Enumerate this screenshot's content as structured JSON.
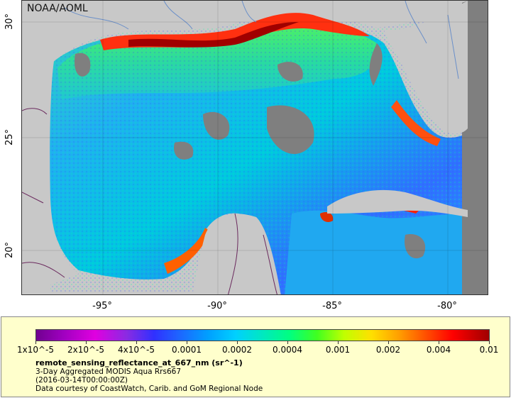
{
  "watermark": "NOAA/AOML",
  "axes": {
    "x_ticks": [
      "-95°",
      "-90°",
      "-85°",
      "-80°"
    ],
    "y_ticks": [
      "30°",
      "25°",
      "20°"
    ]
  },
  "legend": {
    "colorbar_labels": [
      "1x10^-5",
      "2x10^-5",
      "4x10^-5",
      "0.0001",
      "0.0002",
      "0.0004",
      "0.001",
      "0.002",
      "0.004",
      "0.01"
    ],
    "title": "remote_sensing_reflectance_at_667_nm (sr^-1)",
    "line1": "3-Day Aggregated MODIS Aqua Rrs667",
    "line2": "(2016-03-14T00:00:00Z)",
    "line3": "Data courtesy of CoastWatch, Carib. and GoM Regional Node"
  },
  "colors": {
    "land": "#c8c8c8",
    "no_data": "#7f7f7f",
    "rivers": "#6a8fc9",
    "borders": "#6b2a5e",
    "legend_bg": "#ffffcc"
  }
}
